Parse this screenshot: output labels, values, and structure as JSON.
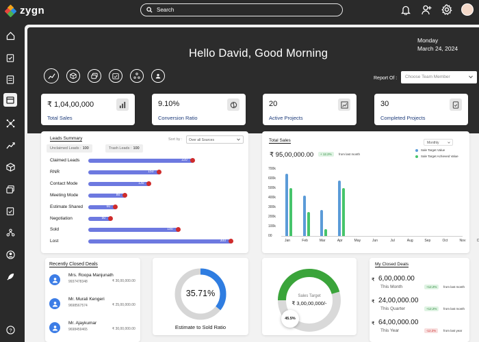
{
  "app": {
    "name": "zygn"
  },
  "search": {
    "placeholder": "Search"
  },
  "hero": {
    "greeting": "Hello David, Good Morning",
    "day": "Monday",
    "date": "March 24, 2024",
    "report_label": "Report Of :",
    "report_select": "Choose Team Member"
  },
  "stats": [
    {
      "value": "₹ 1,04,00,000",
      "label": "Total Sales"
    },
    {
      "value": "9.10%",
      "label": "Conversion Ratio"
    },
    {
      "value": "20",
      "label": "Active Projects"
    },
    {
      "value": "30",
      "label": "Completed Projects"
    }
  ],
  "leads": {
    "title": "Leads Summary",
    "unclaimed_label": "Unclaimed Leads :",
    "unclaimed": "100",
    "trash_label": "Trash Leads :",
    "trash": "100",
    "sort_label": "Sort by :",
    "sort_value": "Over all Sources",
    "max": 300,
    "rows": [
      {
        "label": "Claimed Leads",
        "value": 220
      },
      {
        "label": "RNR",
        "value": 150
      },
      {
        "label": "Contact Mode",
        "value": 130
      },
      {
        "label": "Meeting Mode",
        "value": 80
      },
      {
        "label": "Estimate Shared",
        "value": 60
      },
      {
        "label": "Negotiation",
        "value": 50
      },
      {
        "label": "Sold",
        "value": 190
      },
      {
        "label": "Lost",
        "value": 300
      }
    ]
  },
  "total_sales": {
    "title": "Total Sales",
    "value": "₹  95,00,000.00",
    "change": "+ 12.2%",
    "change_note": "from last month",
    "period": "Monthly",
    "legend": [
      {
        "name": "Sale Target Value",
        "color": "#5b9bd8"
      },
      {
        "name": "Sale Target Achieved Value",
        "color": "#46c46b"
      }
    ]
  },
  "chart_data": {
    "type": "bar",
    "categories": [
      "Jan",
      "Feb",
      "Mar",
      "Apr",
      "May",
      "Jun",
      "Jul",
      "Aug",
      "Sep",
      "Oct",
      "Nov",
      "Dec"
    ],
    "series": [
      {
        "name": "Sale Target Value",
        "values": [
          650,
          425,
          275,
          580,
          0,
          0,
          0,
          0,
          0,
          0,
          0,
          0
        ]
      },
      {
        "name": "Sale Target Achieved Value",
        "values": [
          500,
          250,
          75,
          500,
          0,
          0,
          0,
          0,
          0,
          0,
          0,
          0
        ]
      }
    ],
    "y_ticks": [
      "700k",
      "600k",
      "500k",
      "400k",
      "300k",
      "200k",
      "100k",
      "00"
    ],
    "ylim": [
      0,
      700
    ],
    "title": "Total Sales"
  },
  "recent_deals": {
    "title": "Recently Closed Deals",
    "items": [
      {
        "name": "Mrs. Roopa Manjunath",
        "phone": "9937478348",
        "amount": "₹ 30,00,000.00"
      },
      {
        "name": "Mr. Murali Kengeri",
        "phone": "9698567574",
        "amount": "₹ 25,00,000.00"
      },
      {
        "name": "Mr. Ajaykumar",
        "phone": "9698459465",
        "amount": "₹ 30,00,000.00"
      }
    ]
  },
  "ratio": {
    "value": "35.71%",
    "percent": 35.71,
    "label": "Estimate to Sold Ratio"
  },
  "sales_target": {
    "label": "Sales Target",
    "value": "₹  3,00,00,000/-",
    "badge": "45.5%",
    "percent": 45.5
  },
  "my_closed": {
    "title": "My Closed Deals",
    "items": [
      {
        "value": "6,00,000.00",
        "period": "This Month",
        "change": "+12.2%",
        "note": "from last month",
        "trend": "up"
      },
      {
        "value": "24,00,000.00",
        "period": "This Quarter",
        "change": "+12.2%",
        "note": "from last month",
        "trend": "up"
      },
      {
        "value": "64,00,000.00",
        "period": "This Year",
        "change": "-12.2%",
        "note": "from last year",
        "trend": "down"
      }
    ]
  },
  "colors": {
    "accent": "#1d3b7a",
    "bar_blue": "#6d79e0",
    "dot_red": "#cf2c2c",
    "ratio_blue": "#2f7de1",
    "target_green": "#3aa43a"
  }
}
